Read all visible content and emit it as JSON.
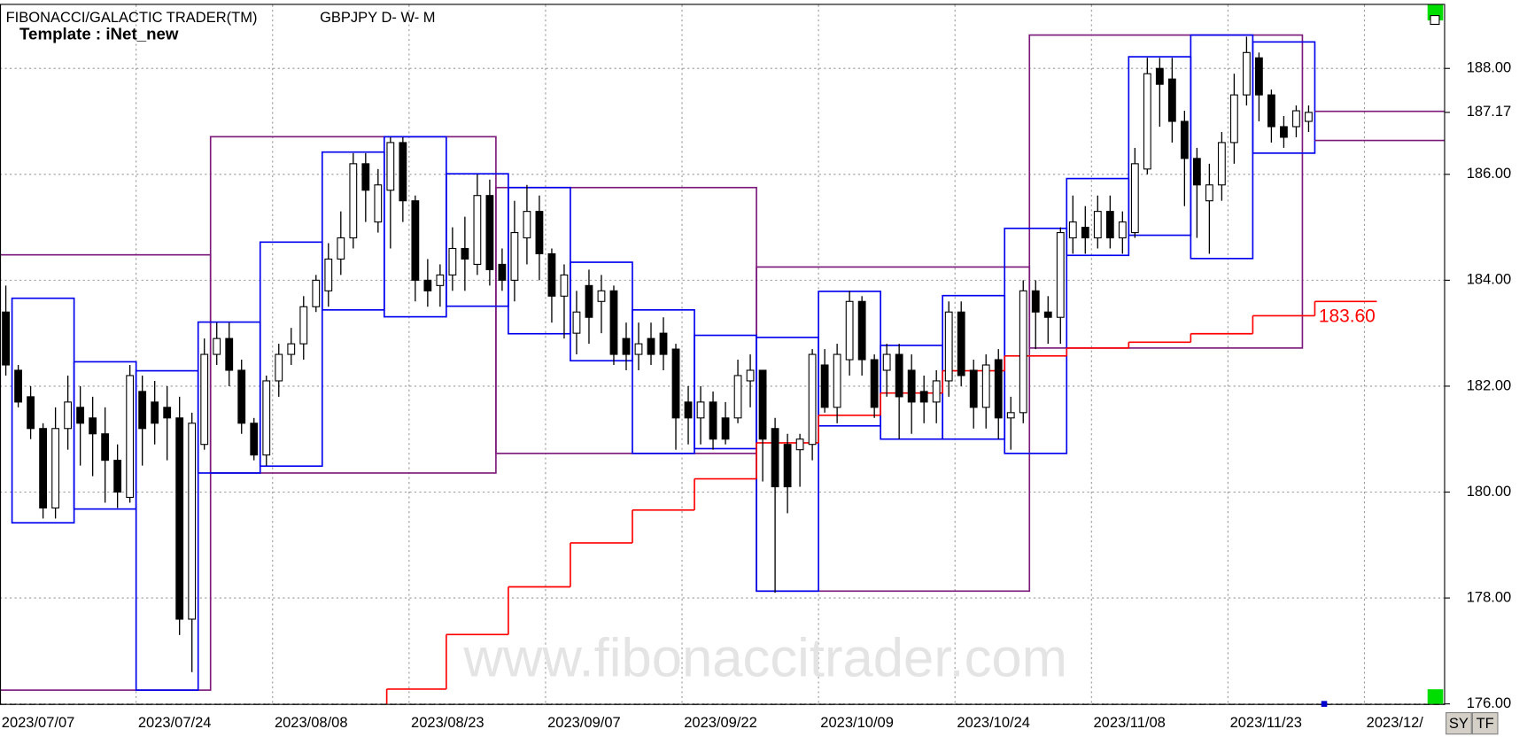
{
  "chart_data": {
    "type": "candlestick",
    "title": "FIBONACCI/GALACTIC TRADER(TM)",
    "subtitle": "GBPJPY D- W- M",
    "template": "Template : iNet_new",
    "watermark": "www.fibonaccitrader.com",
    "buttons": [
      "SY",
      "TF"
    ],
    "categories": [
      "2023/07/07",
      null,
      null,
      null,
      null,
      null,
      null,
      null,
      null,
      null,
      null,
      "2023/07/24",
      null,
      null,
      null,
      null,
      null,
      null,
      null,
      null,
      null,
      null,
      "2023/08/08",
      null,
      null,
      null,
      null,
      null,
      null,
      null,
      null,
      null,
      null,
      "2023/08/23",
      null,
      null,
      null,
      null,
      null,
      null,
      null,
      null,
      null,
      null,
      "2023/09/07",
      null,
      null,
      null,
      null,
      null,
      null,
      null,
      null,
      null,
      null,
      "2023/09/22",
      null,
      null,
      null,
      null,
      null,
      null,
      null,
      null,
      null,
      null,
      "2023/10/09",
      null,
      null,
      null,
      null,
      null,
      null,
      null,
      null,
      null,
      null,
      "2023/10/24",
      null,
      null,
      null,
      null,
      null,
      null,
      null,
      null,
      null,
      null,
      "2023/11/08",
      null,
      null,
      null,
      null,
      null,
      null,
      null,
      null,
      null,
      null,
      "2023/11/23",
      null,
      null,
      null,
      null,
      null,
      null,
      null,
      null,
      null,
      null,
      "2023/12/"
    ],
    "open": [
      183.4,
      182.3,
      181.8,
      181.2,
      179.7,
      181.2,
      181.6,
      181.4,
      181.1,
      180.6,
      179.9,
      181.9,
      181.7,
      181.6,
      181.4,
      177.6,
      180.9,
      182.6,
      182.9,
      182.3,
      181.3,
      180.7,
      182.1,
      182.6,
      182.8,
      183.5,
      183.8,
      184.4,
      184.8,
      186.2,
      185.1,
      185.7,
      186.6,
      185.5,
      184.0,
      183.9,
      184.1,
      184.6,
      184.3,
      185.6,
      184.3,
      184.0,
      184.8,
      185.3,
      184.5,
      183.7,
      183.0,
      183.9,
      183.6,
      183.8,
      182.9,
      182.6,
      182.9,
      183.0,
      182.7,
      181.7,
      181.4,
      181.7,
      181.4,
      181.4,
      182.1,
      182.3,
      181.2,
      180.9,
      180.8,
      180.9,
      182.4,
      181.6,
      182.5,
      183.6,
      182.5,
      182.3,
      182.6,
      182.3,
      181.9,
      181.7,
      182.1,
      183.4,
      182.3,
      181.6,
      182.5,
      181.4,
      181.5,
      183.8,
      183.4,
      183.3,
      184.8,
      185.0,
      184.8,
      185.3,
      184.8,
      184.9,
      186.1,
      188.0,
      187.8,
      187.0,
      186.3,
      185.5,
      185.8,
      186.6,
      187.5,
      188.2,
      187.5,
      186.9,
      186.9,
      187.0,
      null,
      null,
      null,
      null,
      null
    ],
    "high": [
      183.9,
      182.4,
      182.0,
      181.3,
      181.6,
      182.2,
      182.0,
      181.8,
      181.6,
      180.9,
      182.4,
      182.2,
      182.1,
      182.0,
      181.8,
      181.5,
      182.9,
      183.2,
      183.2,
      182.5,
      181.4,
      182.2,
      182.8,
      183.1,
      183.7,
      184.1,
      184.7,
      185.3,
      186.4,
      186.4,
      186.1,
      186.7,
      186.7,
      185.6,
      184.4,
      184.3,
      185.0,
      185.2,
      186.0,
      185.9,
      184.6,
      185.5,
      185.8,
      185.6,
      184.6,
      184.3,
      183.8,
      184.2,
      184.1,
      183.9,
      183.2,
      183.2,
      183.2,
      183.3,
      182.8,
      182.0,
      182.0,
      181.9,
      181.7,
      182.5,
      182.6,
      182.3,
      181.4,
      181.1,
      181.1,
      182.7,
      182.7,
      182.8,
      183.8,
      183.7,
      182.6,
      182.8,
      182.8,
      182.6,
      182.2,
      182.3,
      183.6,
      183.6,
      182.5,
      182.6,
      182.7,
      181.8,
      184.0,
      184.0,
      183.7,
      185.0,
      185.6,
      185.4,
      185.6,
      185.6,
      185.3,
      186.5,
      188.2,
      188.2,
      188.2,
      187.2,
      186.5,
      186.2,
      186.8,
      187.9,
      188.6,
      188.3,
      187.6,
      187.1,
      187.3,
      187.3,
      null,
      null,
      null,
      null,
      null
    ],
    "low": [
      182.2,
      181.6,
      181.0,
      179.5,
      179.5,
      180.8,
      180.5,
      180.3,
      179.8,
      179.7,
      179.8,
      180.5,
      180.9,
      180.6,
      177.3,
      176.6,
      180.8,
      182.4,
      182.0,
      181.1,
      180.6,
      180.5,
      181.8,
      182.4,
      182.5,
      183.4,
      183.5,
      184.1,
      184.6,
      185.1,
      184.9,
      184.6,
      185.1,
      183.6,
      183.5,
      183.5,
      183.8,
      183.8,
      184.1,
      183.9,
      183.8,
      183.6,
      184.3,
      184.0,
      183.2,
      182.9,
      182.6,
      182.8,
      183.0,
      182.4,
      182.3,
      182.3,
      182.4,
      182.3,
      180.8,
      180.9,
      180.9,
      180.8,
      180.9,
      181.3,
      181.6,
      180.2,
      178.1,
      179.6,
      180.1,
      180.6,
      181.5,
      181.3,
      182.2,
      182.2,
      181.4,
      181.8,
      181.0,
      181.1,
      181.3,
      181.3,
      181.8,
      182.0,
      181.2,
      181.2,
      181.0,
      180.8,
      181.3,
      182.7,
      182.8,
      182.8,
      184.5,
      184.5,
      184.6,
      184.6,
      184.5,
      184.8,
      186.0,
      186.9,
      186.6,
      185.4,
      184.8,
      184.5,
      185.5,
      186.2,
      187.3,
      187.0,
      186.6,
      186.5,
      186.7,
      186.8,
      null,
      null,
      null,
      null,
      null
    ],
    "close": [
      182.4,
      181.7,
      181.2,
      179.7,
      181.2,
      181.7,
      181.3,
      181.1,
      180.6,
      180.0,
      182.2,
      181.2,
      181.3,
      181.4,
      177.6,
      181.3,
      182.6,
      182.9,
      182.3,
      181.3,
      180.7,
      182.1,
      182.6,
      182.8,
      183.5,
      184.0,
      184.4,
      184.8,
      186.2,
      185.7,
      185.8,
      186.6,
      185.5,
      184.0,
      183.8,
      184.1,
      184.6,
      184.4,
      185.6,
      184.2,
      184.0,
      184.9,
      185.3,
      184.5,
      183.7,
      184.1,
      183.4,
      183.3,
      183.8,
      182.6,
      182.6,
      182.8,
      182.6,
      182.6,
      181.4,
      181.4,
      181.7,
      181.0,
      181.0,
      182.2,
      182.3,
      181.0,
      180.1,
      180.1,
      181.0,
      182.6,
      181.6,
      182.6,
      183.6,
      182.5,
      181.6,
      182.6,
      181.8,
      181.7,
      181.7,
      182.1,
      183.4,
      182.2,
      181.6,
      182.4,
      181.4,
      181.5,
      183.8,
      183.4,
      183.3,
      184.9,
      185.1,
      184.8,
      185.3,
      184.8,
      185.1,
      186.2,
      187.9,
      187.7,
      187.0,
      186.3,
      185.8,
      185.8,
      186.6,
      187.5,
      188.3,
      187.5,
      186.9,
      186.7,
      187.2,
      187.17,
      null,
      null,
      null,
      null,
      null
    ],
    "up_color": "#ffffff",
    "down_color": "#000000",
    "xlim": [
      -0.47,
      116
    ],
    "ylim": [
      176,
      189.2
    ],
    "yticks": [
      {
        "value": 176,
        "label": "176.00"
      },
      {
        "value": 178,
        "label": "178.00"
      },
      {
        "value": 180,
        "label": "180.00"
      },
      {
        "value": 182,
        "label": "182.00"
      },
      {
        "value": 184,
        "label": "184.00"
      },
      {
        "value": 186,
        "label": "186.00"
      },
      {
        "value": 188,
        "label": "188.00"
      }
    ],
    "grid": true,
    "last_price": 187.17,
    "monthly_color": "#7b1a7b",
    "monthly_boxes": [
      {
        "start": -0.5,
        "end": 16.5,
        "high": 184.48,
        "low": 176.26
      },
      {
        "start": 16.5,
        "end": 39.5,
        "high": 186.71,
        "low": 180.36
      },
      {
        "start": 39.5,
        "end": 60.5,
        "high": 185.75,
        "low": 180.73
      },
      {
        "start": 60.5,
        "end": 82.5,
        "high": 184.25,
        "low": 178.13
      },
      {
        "start": 82.5,
        "end": 104.5,
        "high": 188.63,
        "low": 182.72
      }
    ],
    "weekly_color": "#0000ee",
    "weekly_boxes": [
      {
        "start": 0.5,
        "end": 5.5,
        "high": 183.66,
        "low": 179.42
      },
      {
        "start": 5.5,
        "end": 10.5,
        "high": 182.46,
        "low": 179.68
      },
      {
        "start": 10.5,
        "end": 15.5,
        "high": 182.29,
        "low": 176.26
      },
      {
        "start": 15.5,
        "end": 20.5,
        "high": 183.21,
        "low": 180.36
      },
      {
        "start": 20.5,
        "end": 25.5,
        "high": 184.72,
        "low": 180.49
      },
      {
        "start": 25.5,
        "end": 30.5,
        "high": 186.42,
        "low": 183.44
      },
      {
        "start": 30.5,
        "end": 35.5,
        "high": 186.71,
        "low": 183.31
      },
      {
        "start": 35.5,
        "end": 40.5,
        "high": 186.01,
        "low": 183.51
      },
      {
        "start": 40.5,
        "end": 45.5,
        "high": 185.75,
        "low": 182.99
      },
      {
        "start": 45.5,
        "end": 50.5,
        "high": 184.34,
        "low": 182.48
      },
      {
        "start": 50.5,
        "end": 55.5,
        "high": 183.44,
        "low": 180.73
      },
      {
        "start": 55.5,
        "end": 60.5,
        "high": 182.96,
        "low": 180.82
      },
      {
        "start": 60.5,
        "end": 65.5,
        "high": 182.92,
        "low": 178.13
      },
      {
        "start": 65.5,
        "end": 70.5,
        "high": 183.79,
        "low": 181.25
      },
      {
        "start": 70.5,
        "end": 75.5,
        "high": 182.77,
        "low": 181.0
      },
      {
        "start": 75.5,
        "end": 80.5,
        "high": 183.71,
        "low": 181.0
      },
      {
        "start": 80.5,
        "end": 85.5,
        "high": 184.98,
        "low": 180.73
      },
      {
        "start": 85.5,
        "end": 90.5,
        "high": 185.92,
        "low": 184.47
      },
      {
        "start": 90.5,
        "end": 95.5,
        "high": 188.22,
        "low": 184.85
      },
      {
        "start": 95.5,
        "end": 100.5,
        "high": 188.63,
        "low": 184.41
      },
      {
        "start": 100.5,
        "end": 105.5,
        "high": 188.5,
        "low": 186.4
      }
    ],
    "step_color": "#ff0000",
    "step_levels": [
      {
        "start": 30.7,
        "end": 35.5,
        "value": 176.28
      },
      {
        "start": 35.5,
        "end": 40.5,
        "value": 177.31
      },
      {
        "start": 40.5,
        "end": 45.5,
        "value": 178.21
      },
      {
        "start": 45.5,
        "end": 50.5,
        "value": 179.04
      },
      {
        "start": 50.5,
        "end": 55.5,
        "value": 179.66
      },
      {
        "start": 55.5,
        "end": 60.5,
        "value": 180.25
      },
      {
        "start": 60.5,
        "end": 65.5,
        "value": 180.93
      },
      {
        "start": 65.5,
        "end": 70.5,
        "value": 181.45
      },
      {
        "start": 70.5,
        "end": 75.5,
        "value": 181.87
      },
      {
        "start": 75.5,
        "end": 80.5,
        "value": 182.29
      },
      {
        "start": 80.5,
        "end": 85.5,
        "value": 182.57
      },
      {
        "start": 85.5,
        "end": 90.5,
        "value": 182.72
      },
      {
        "start": 90.5,
        "end": 95.5,
        "value": 182.83
      },
      {
        "start": 95.5,
        "end": 100.5,
        "value": 182.99
      },
      {
        "start": 100.5,
        "end": 105.5,
        "value": 183.33
      },
      {
        "start": 105.5,
        "end": 110.5,
        "value": 183.6
      }
    ],
    "step_value_label": "183.60",
    "projection_lines": [
      187.19,
      186.64
    ]
  }
}
